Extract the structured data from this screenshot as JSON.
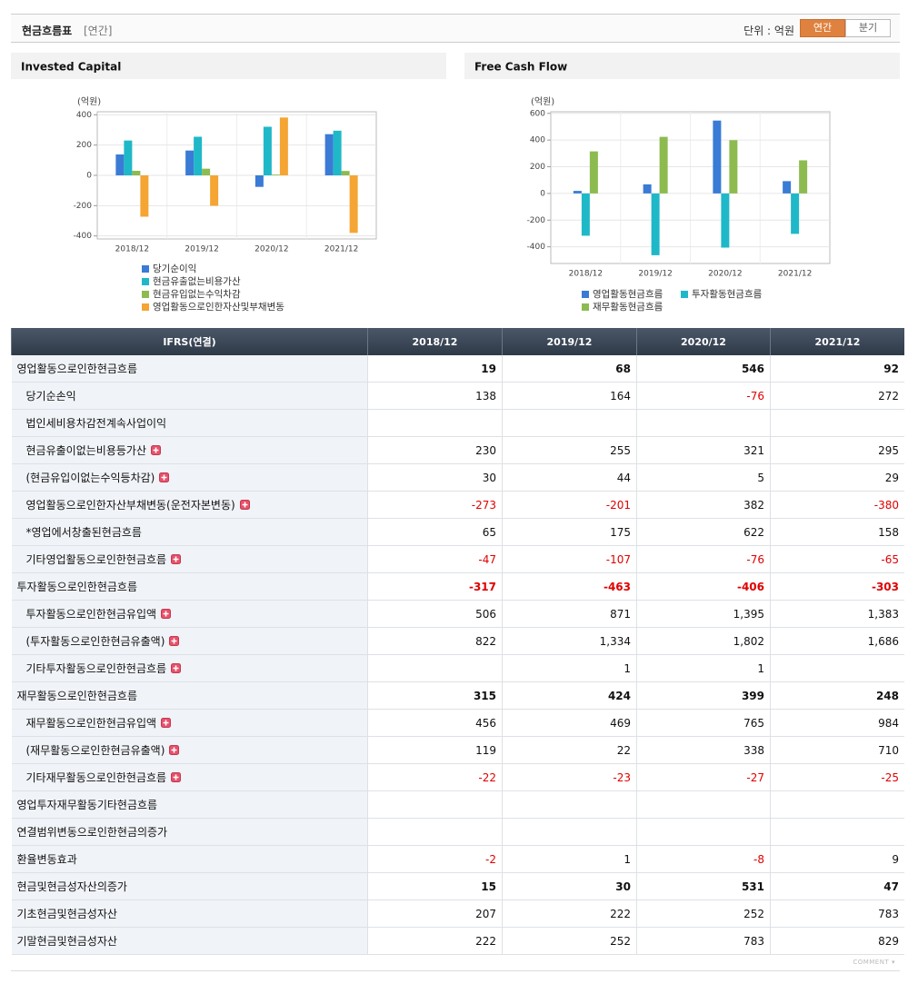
{
  "header": {
    "title": "현금흐름표",
    "period": "[연간]",
    "unit": "단위 : 억원",
    "tabs": [
      "연간",
      "분기"
    ],
    "active_tab": 0
  },
  "chart_data": [
    {
      "type": "bar",
      "title": "Invested Capital",
      "y_label": "(억원)",
      "categories": [
        "2018/12",
        "2019/12",
        "2020/12",
        "2021/12"
      ],
      "series": [
        {
          "name": "당기순이익",
          "color": "#3a7bd5",
          "values": [
            138,
            164,
            -76,
            272
          ]
        },
        {
          "name": "현금유출없는비용가산",
          "color": "#1fb8c8",
          "values": [
            230,
            255,
            321,
            295
          ]
        },
        {
          "name": "현금유입없는수익차감",
          "color": "#8dbb50",
          "values": [
            30,
            44,
            5,
            29
          ]
        },
        {
          "name": "영업활동으로인한자산및부채변동",
          "color": "#f5a533",
          "values": [
            -273,
            -201,
            382,
            -380
          ]
        }
      ],
      "ylim": [
        -420,
        420
      ],
      "yticks": [
        -400,
        -200,
        0,
        200,
        400
      ],
      "grid": true
    },
    {
      "type": "bar",
      "title": "Free Cash Flow",
      "y_label": "(억원)",
      "categories": [
        "2018/12",
        "2019/12",
        "2020/12",
        "2021/12"
      ],
      "series": [
        {
          "name": "영업활동현금흐름",
          "color": "#3a7bd5",
          "values": [
            19,
            68,
            546,
            92
          ]
        },
        {
          "name": "투자활동현금흐름",
          "color": "#1fb8c8",
          "values": [
            -317,
            -463,
            -406,
            -303
          ]
        },
        {
          "name": "재무활동현금흐름",
          "color": "#8dbb50",
          "values": [
            315,
            424,
            399,
            248
          ]
        }
      ],
      "ylim": [
        -525,
        612
      ],
      "yticks": [
        -400,
        -200,
        0,
        200,
        400,
        600
      ],
      "grid": true
    }
  ],
  "table": {
    "columns": [
      "IFRS(연결)",
      "2018/12",
      "2019/12",
      "2020/12",
      "2021/12"
    ],
    "rows": [
      {
        "label": "영업활동으로인한현금흐름",
        "values": [
          "19",
          "68",
          "546",
          "92"
        ],
        "bold": true
      },
      {
        "label": "당기순손익",
        "values": [
          "138",
          "164",
          "-76",
          "272"
        ],
        "sub": true
      },
      {
        "label": "법인세비용차감전계속사업이익",
        "values": [
          null,
          null,
          null,
          null
        ],
        "sub": true
      },
      {
        "label": "현금유출이없는비용등가산",
        "values": [
          "230",
          "255",
          "321",
          "295"
        ],
        "sub": true,
        "expand": true
      },
      {
        "label": "(현금유입이없는수익등차감)",
        "values": [
          "30",
          "44",
          "5",
          "29"
        ],
        "sub": true,
        "expand": true
      },
      {
        "label": "영업활동으로인한자산부채변동(운전자본변동)",
        "values": [
          "-273",
          "-201",
          "382",
          "-380"
        ],
        "sub": true,
        "expand": true
      },
      {
        "label": "*영업에서창출된현금흐름",
        "values": [
          "65",
          "175",
          "622",
          "158"
        ],
        "sub": true
      },
      {
        "label": "기타영업활동으로인한현금흐름",
        "values": [
          "-47",
          "-107",
          "-76",
          "-65"
        ],
        "sub": true,
        "expand": true
      },
      {
        "label": "투자활동으로인한현금흐름",
        "values": [
          "-317",
          "-463",
          "-406",
          "-303"
        ],
        "bold": true
      },
      {
        "label": "투자활동으로인한현금유입액",
        "values": [
          "506",
          "871",
          "1,395",
          "1,383"
        ],
        "sub": true,
        "expand": true
      },
      {
        "label": "(투자활동으로인한현금유출액)",
        "values": [
          "822",
          "1,334",
          "1,802",
          "1,686"
        ],
        "sub": true,
        "expand": true
      },
      {
        "label": "기타투자활동으로인한현금흐름",
        "values": [
          null,
          "1",
          "1",
          null
        ],
        "sub": true,
        "expand": true
      },
      {
        "label": "재무활동으로인한현금흐름",
        "values": [
          "315",
          "424",
          "399",
          "248"
        ],
        "bold": true
      },
      {
        "label": "재무활동으로인한현금유입액",
        "values": [
          "456",
          "469",
          "765",
          "984"
        ],
        "sub": true,
        "expand": true
      },
      {
        "label": "(재무활동으로인한현금유출액)",
        "values": [
          "119",
          "22",
          "338",
          "710"
        ],
        "sub": true,
        "expand": true
      },
      {
        "label": "기타재무활동으로인한현금흐름",
        "values": [
          "-22",
          "-23",
          "-27",
          "-25"
        ],
        "sub": true,
        "expand": true
      },
      {
        "label": "영업투자재무활동기타현금흐름",
        "values": [
          null,
          null,
          null,
          null
        ]
      },
      {
        "label": "연결범위변동으로인한현금의증가",
        "values": [
          null,
          null,
          null,
          null
        ]
      },
      {
        "label": "환율변동효과",
        "values": [
          "-2",
          "1",
          "-8",
          "9"
        ]
      },
      {
        "label": "현금및현금성자산의증가",
        "values": [
          "15",
          "30",
          "531",
          "47"
        ],
        "bold": true
      },
      {
        "label": "기초현금및현금성자산",
        "values": [
          "207",
          "222",
          "252",
          "783"
        ]
      },
      {
        "label": "기말현금및현금성자산",
        "values": [
          "222",
          "252",
          "783",
          "829"
        ]
      }
    ]
  },
  "footer": {
    "comment": "COMMENT"
  }
}
